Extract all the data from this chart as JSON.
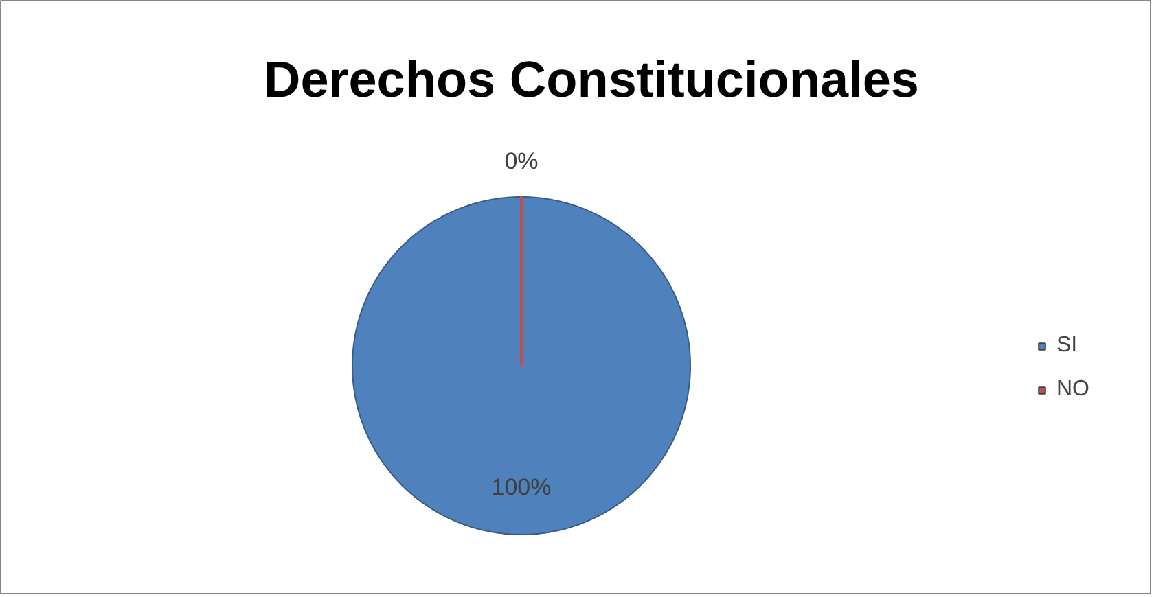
{
  "chart_data": {
    "type": "pie",
    "title": "Derechos Constitucionales",
    "categories": [
      "SI",
      "NO"
    ],
    "values": [
      100,
      0
    ],
    "colors": [
      "#4f81bd",
      "#c0504d"
    ],
    "value_labels": [
      "100%",
      "0%"
    ],
    "legend": "right"
  }
}
